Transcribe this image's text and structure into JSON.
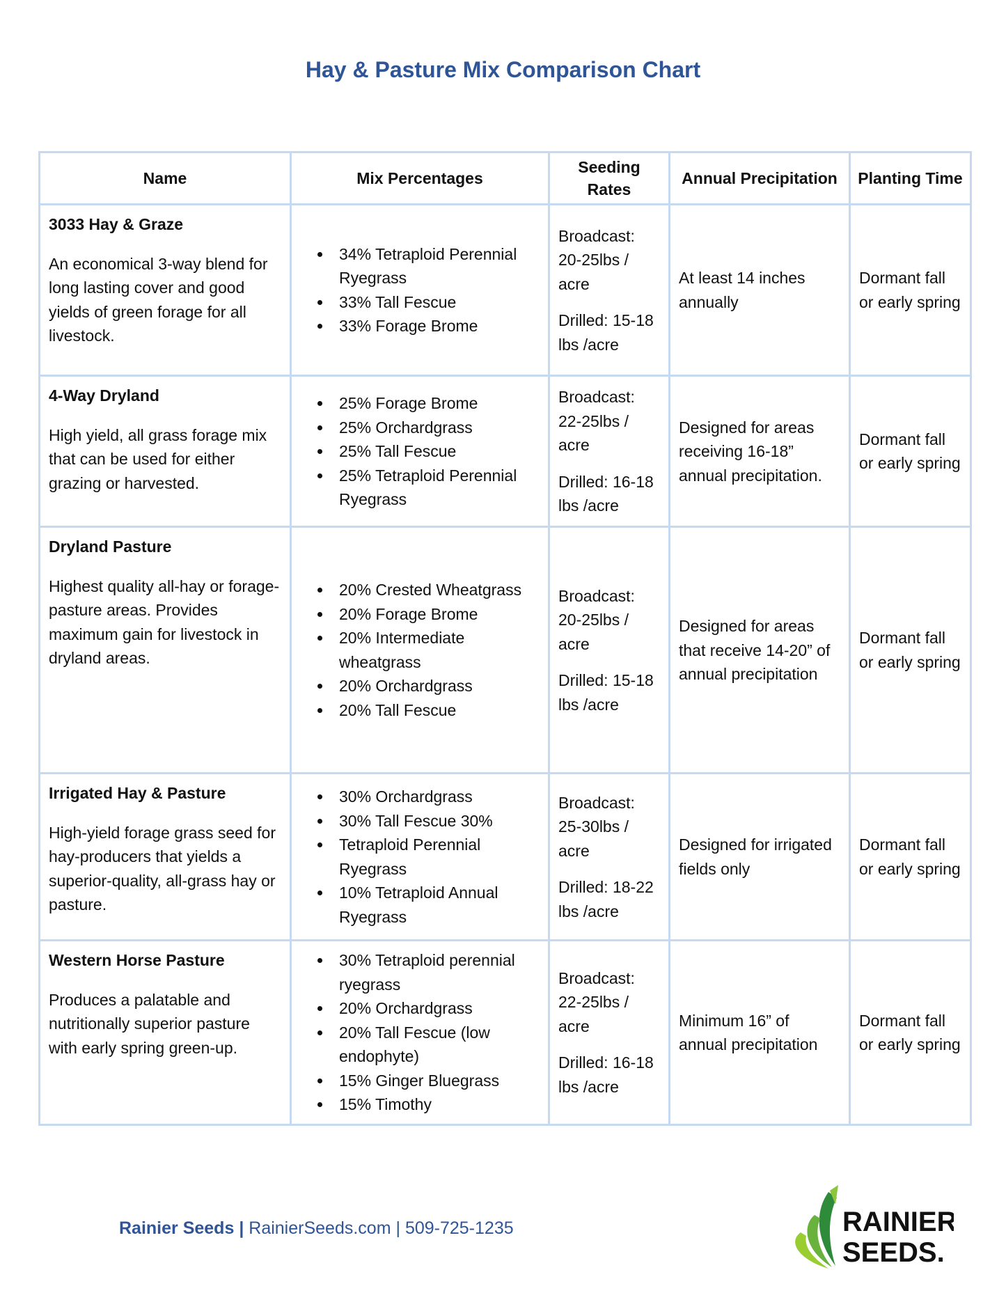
{
  "header": {
    "title": "Hay & Pasture Mix Comparison Chart"
  },
  "table": {
    "columns": [
      "Name",
      "Mix Percentages",
      "Seeding Rates",
      "Annual Precipitation",
      "Planting Time"
    ],
    "rows": [
      {
        "name": "3033 Hay & Graze",
        "description": "An economical 3-way blend for long lasting cover and good yields of green forage for all livestock.",
        "mix": [
          "34% Tetraploid Perennial Ryegrass",
          "33% Tall Fescue",
          "33% Forage Brome"
        ],
        "broadcast": "Broadcast: 20-25lbs / acre",
        "drilled": "Drilled: 15-18 lbs /acre",
        "precipitation": "At least 14 inches annually",
        "planting": "Dormant fall or early spring"
      },
      {
        "name": "4-Way Dryland",
        "description": "High yield, all grass forage mix that can be used for either grazing or harvested.",
        "mix": [
          "25% Forage Brome",
          "25% Orchardgrass",
          "25% Tall Fescue",
          "25% Tetraploid Perennial Ryegrass"
        ],
        "broadcast": "Broadcast: 22-25lbs / acre",
        "drilled": "Drilled: 16-18 lbs /acre",
        "precipitation": "Designed for areas receiving 16-18” annual precipitation.",
        "planting": "Dormant fall or early spring"
      },
      {
        "name": "Dryland Pasture",
        "description": "Highest quality all-hay or forage-pasture areas. Provides maximum gain for livestock in dryland areas.",
        "mix": [
          "20% Crested Wheatgrass",
          "20% Forage Brome",
          "20% Intermediate wheatgrass",
          "20% Orchardgrass",
          "20% Tall Fescue"
        ],
        "broadcast": "Broadcast: 20-25lbs / acre",
        "drilled": "Drilled: 15-18 lbs /acre",
        "precipitation": "Designed for areas that receive 14-20” of annual precipitation",
        "planting": "Dormant fall or early spring"
      },
      {
        "name": "Irrigated Hay & Pasture",
        "description": "High-yield forage grass seed for hay-producers that yields a superior-quality, all-grass hay or pasture.",
        "mix": [
          "30% Orchardgrass",
          "30% Tall Fescue 30%",
          "Tetraploid Perennial Ryegrass",
          "10% Tetraploid Annual Ryegrass"
        ],
        "broadcast": "Broadcast: 25-30lbs / acre",
        "drilled": "Drilled: 18-22 lbs /acre",
        "precipitation": "Designed for irrigated fields only",
        "planting": "Dormant fall or early spring"
      },
      {
        "name": "Western Horse Pasture",
        "description": "Produces a palatable and nutritionally superior pasture with early spring green-up.",
        "mix": [
          "30% Tetraploid perennial ryegrass",
          "20% Orchardgrass",
          "20% Tall Fescue (low endophyte)",
          "15% Ginger Bluegrass",
          "15% Timothy"
        ],
        "broadcast": "Broadcast: 22-25lbs / acre",
        "drilled": "Drilled: 16-18 lbs /acre",
        "precipitation": "Minimum 16” of annual precipitation",
        "planting": "Dormant fall or early spring"
      }
    ]
  },
  "footer": {
    "company": "Rainier Seeds",
    "separator": "|",
    "website": "RainierSeeds.com",
    "phone": "509-725-1235"
  },
  "logo": {
    "line1": "RAINIER",
    "line2": "SEEDS."
  }
}
